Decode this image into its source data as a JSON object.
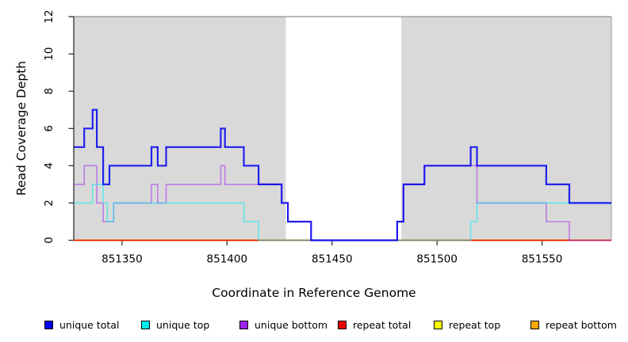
{
  "chart_data": {
    "type": "line",
    "subtype": "step-coverage-plot",
    "title": "",
    "xlabel": "Coordinate in Reference Genome",
    "ylabel": "Read Coverage Depth",
    "xlim": [
      851327,
      851583
    ],
    "ylim": [
      0,
      12
    ],
    "x_ticks": [
      851350,
      851400,
      851450,
      851500,
      851550
    ],
    "y_ticks": [
      0,
      2,
      4,
      6,
      8,
      10,
      12
    ],
    "grid": false,
    "legend_position": "bottom",
    "shade_color": "#d9d9d9",
    "shaded_regions": [
      {
        "x0": 851327,
        "x1": 851428
      },
      {
        "x0": 851483,
        "x1": 851583
      }
    ],
    "series": [
      {
        "name": "unique total",
        "color": "#0000ee",
        "steps": [
          [
            851327,
            5
          ],
          [
            851332,
            6
          ],
          [
            851336,
            7
          ],
          [
            851338,
            5
          ],
          [
            851341,
            3
          ],
          [
            851344,
            4
          ],
          [
            851364,
            5
          ],
          [
            851367,
            4
          ],
          [
            851371,
            5
          ],
          [
            851397,
            6
          ],
          [
            851399,
            5
          ],
          [
            851408,
            4
          ],
          [
            851415,
            3
          ],
          [
            851426,
            2
          ],
          [
            851429,
            1
          ],
          [
            851440,
            0
          ],
          [
            851481,
            1
          ],
          [
            851484,
            3
          ],
          [
            851494,
            4
          ],
          [
            851516,
            5
          ],
          [
            851519,
            4
          ],
          [
            851552,
            3
          ],
          [
            851563,
            2
          ],
          [
            851583,
            2
          ]
        ]
      },
      {
        "name": "unique top",
        "color": "#00eeee",
        "steps": [
          [
            851327,
            2
          ],
          [
            851336,
            3
          ],
          [
            851341,
            2
          ],
          [
            851343,
            1
          ],
          [
            851346,
            2
          ],
          [
            851408,
            1
          ],
          [
            851415,
            0
          ],
          [
            851516,
            1
          ],
          [
            851519,
            2
          ],
          [
            851583,
            2
          ]
        ]
      },
      {
        "name": "unique bottom",
        "color": "#a020f0",
        "steps": [
          [
            851327,
            3
          ],
          [
            851332,
            4
          ],
          [
            851338,
            2
          ],
          [
            851341,
            1
          ],
          [
            851346,
            2
          ],
          [
            851364,
            3
          ],
          [
            851367,
            2
          ],
          [
            851371,
            3
          ],
          [
            851397,
            4
          ],
          [
            851399,
            3
          ],
          [
            851426,
            2
          ],
          [
            851429,
            1
          ],
          [
            851440,
            0
          ],
          [
            851481,
            1
          ],
          [
            851484,
            3
          ],
          [
            851494,
            4
          ],
          [
            851519,
            2
          ],
          [
            851552,
            1
          ],
          [
            851563,
            0
          ],
          [
            851583,
            0
          ]
        ]
      },
      {
        "name": "repeat total",
        "color": "#ee0000",
        "steps": [
          [
            851327,
            0
          ],
          [
            851583,
            0
          ]
        ]
      },
      {
        "name": "repeat top",
        "color": "#ffff00",
        "steps": [
          [
            851327,
            0
          ],
          [
            851583,
            0
          ]
        ]
      },
      {
        "name": "repeat bottom",
        "color": "#ffa500",
        "steps": [
          [
            851327,
            0
          ],
          [
            851583,
            0
          ]
        ]
      }
    ]
  }
}
